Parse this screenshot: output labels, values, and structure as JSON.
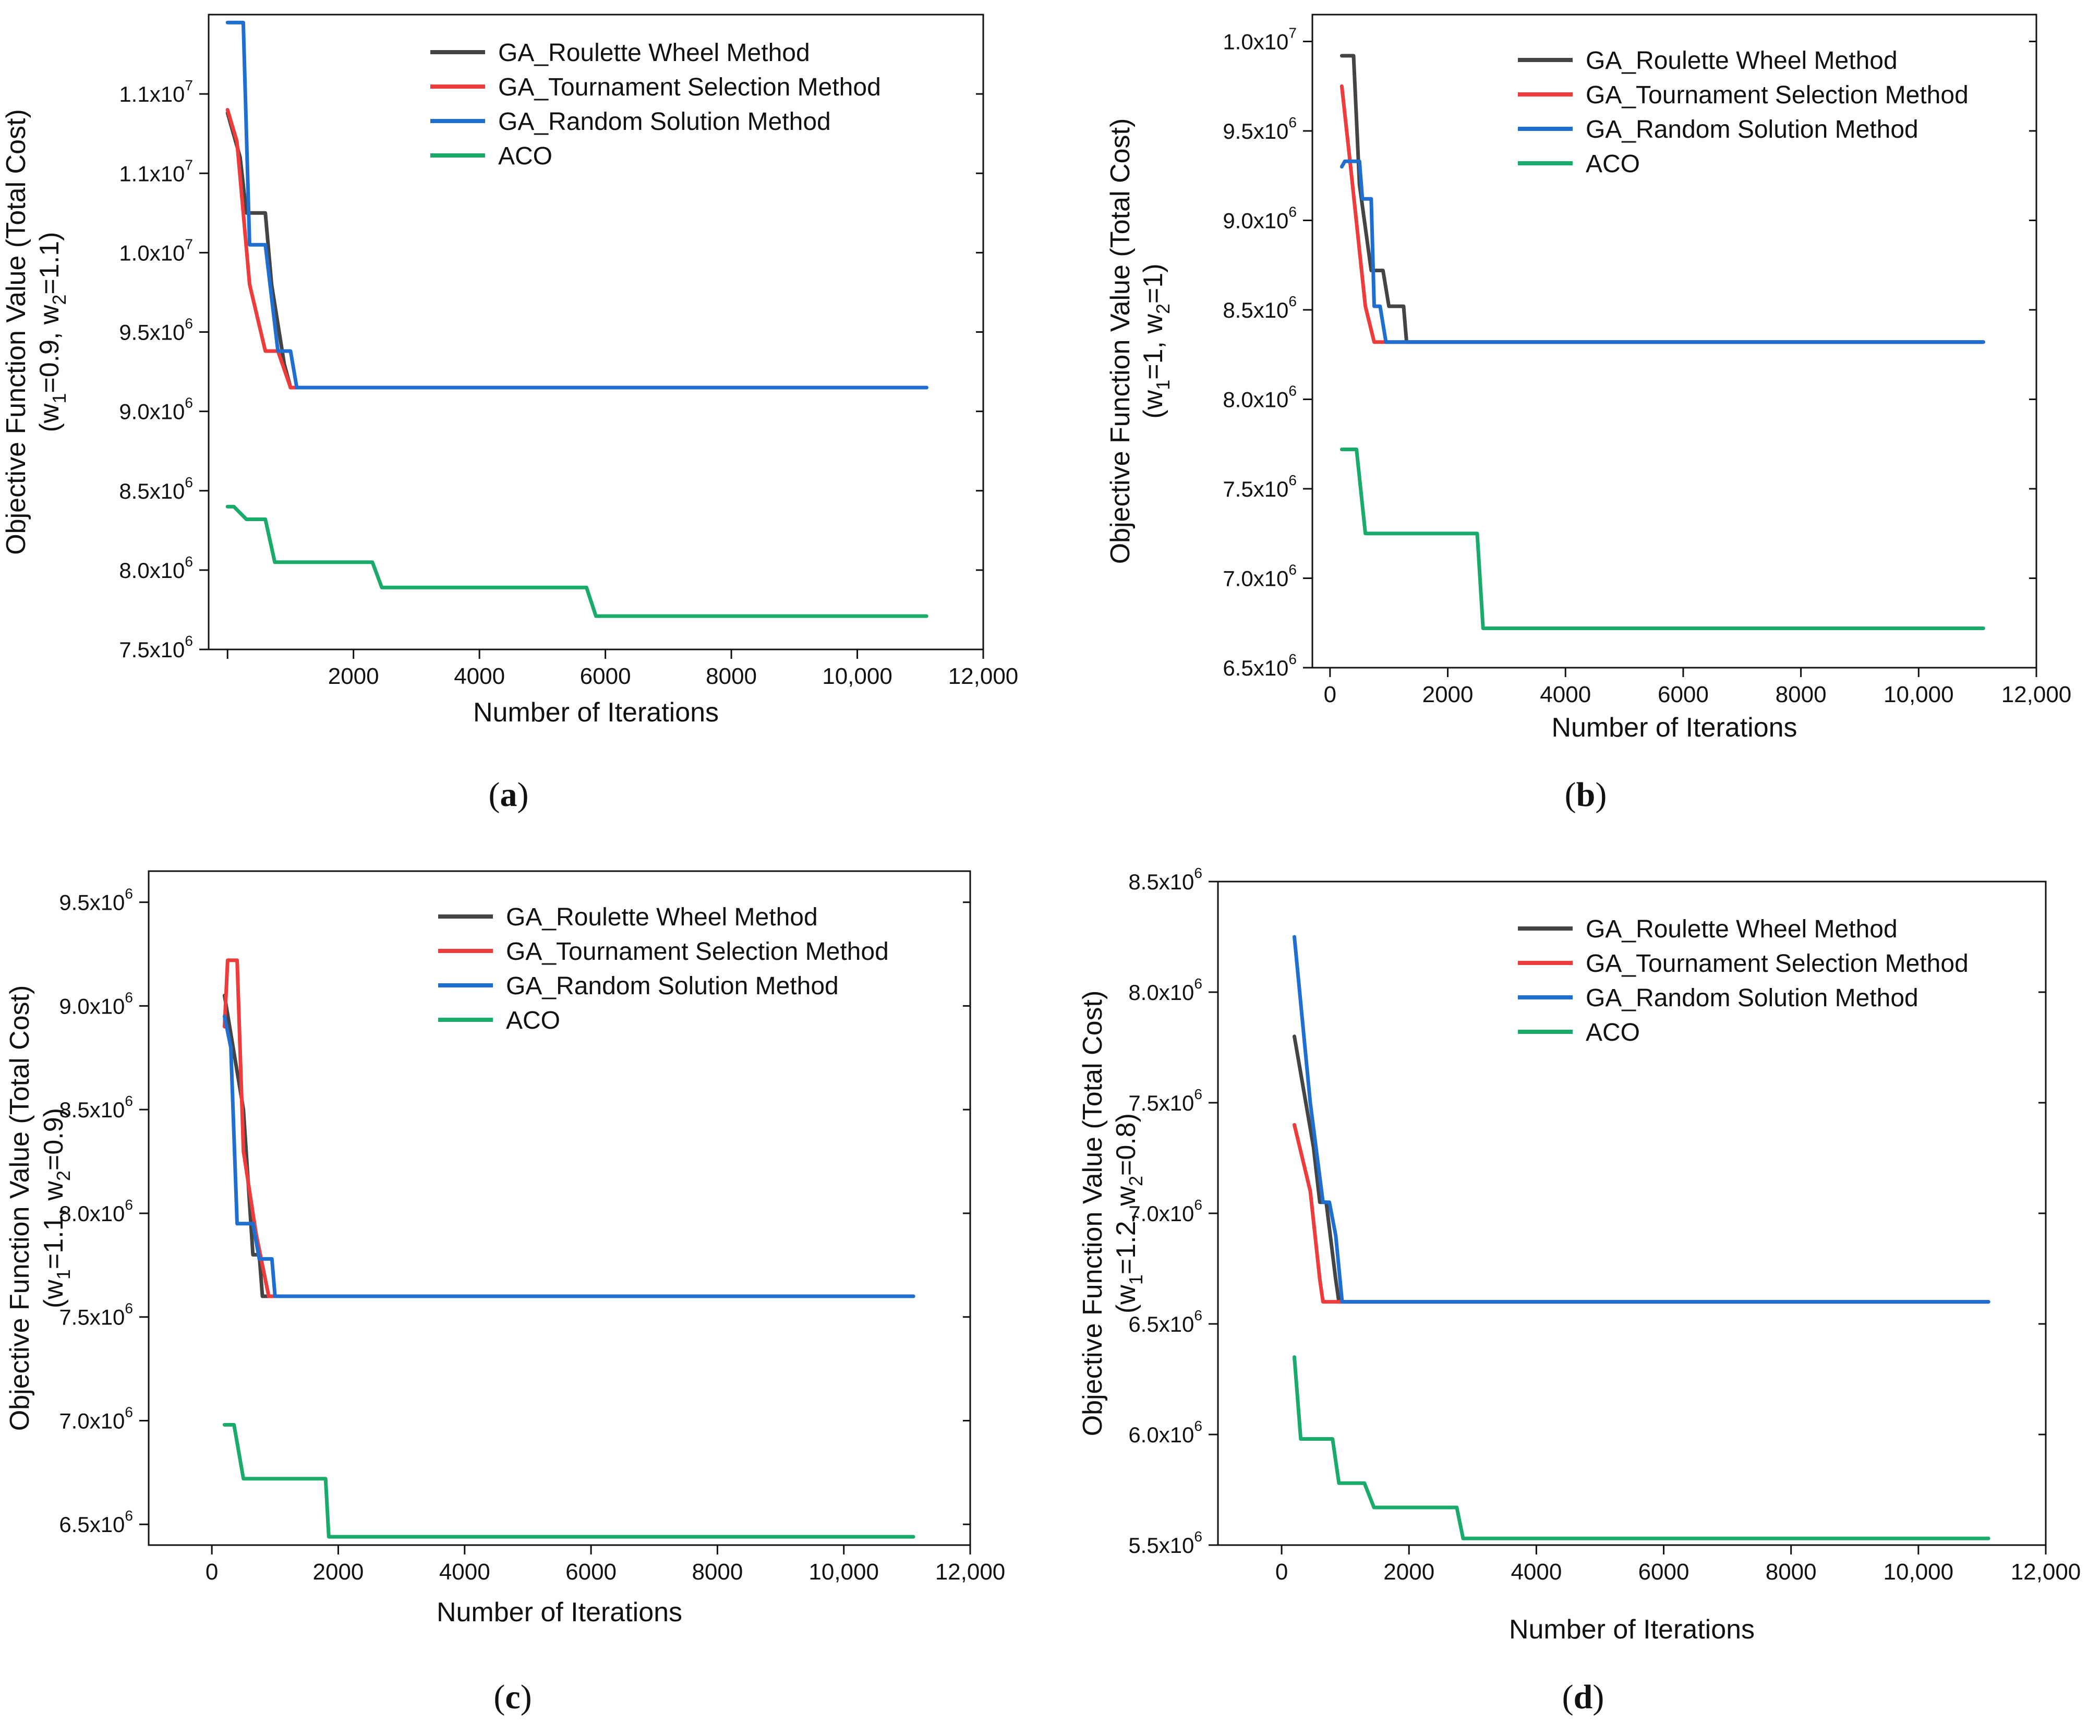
{
  "chart_data": [
    {
      "type": "line",
      "panel_label": "a",
      "xlabel": "Number of Iterations",
      "ylabel": "Objective Function Value (Total Cost)",
      "ylabel_weights": {
        "w1": "0.9",
        "w2": "1.1"
      },
      "xlim": [
        -300,
        12000
      ],
      "ylim": [
        7500000,
        11500000
      ],
      "xticks": [
        0,
        2000,
        4000,
        6000,
        8000,
        10000,
        12000
      ],
      "xtick_labels": [
        "",
        "2000",
        "4000",
        "6000",
        "8000",
        "10,000",
        "12,000"
      ],
      "yticks": [
        {
          "value": 7500000,
          "mantissa": "7.5x10",
          "exp": "6"
        },
        {
          "value": 8000000,
          "mantissa": "8.0x10",
          "exp": "6"
        },
        {
          "value": 8500000,
          "mantissa": "8.5x10",
          "exp": "6"
        },
        {
          "value": 9000000,
          "mantissa": "9.0x10",
          "exp": "6"
        },
        {
          "value": 9500000,
          "mantissa": "9.5x10",
          "exp": "6"
        },
        {
          "value": 10000000,
          "mantissa": "1.0x10",
          "exp": "7"
        },
        {
          "value": 10500000,
          "mantissa": "1.1x10",
          "exp": "7"
        },
        {
          "value": 11000000,
          "mantissa": "1.1x10",
          "exp": "7"
        }
      ],
      "series": [
        {
          "name": "GA_Roulette Wheel Method",
          "color": "#444444",
          "x": [
            0,
            200,
            300,
            600,
            700,
            900,
            1000,
            11100
          ],
          "y": [
            10880000,
            10600000,
            10250000,
            10250000,
            9800000,
            9300000,
            9150000,
            9150000
          ]
        },
        {
          "name": "GA_Tournament Selection Method",
          "color": "#ee3b3b",
          "x": [
            0,
            150,
            350,
            600,
            800,
            1000,
            11100
          ],
          "y": [
            10900000,
            10700000,
            9800000,
            9380000,
            9380000,
            9150000,
            9150000
          ]
        },
        {
          "name": "GA_Random Solution Method",
          "color": "#1f6fd1",
          "x": [
            0,
            250,
            350,
            600,
            800,
            1000,
            1100,
            11100
          ],
          "y": [
            11450000,
            11450000,
            10050000,
            10050000,
            9380000,
            9380000,
            9150000,
            9150000
          ]
        },
        {
          "name": "ACO",
          "color": "#1aaa6a",
          "x": [
            0,
            100,
            300,
            600,
            750,
            2300,
            2450,
            5700,
            5850,
            11100
          ],
          "y": [
            8400000,
            8400000,
            8320000,
            8320000,
            8050000,
            8050000,
            7890000,
            7890000,
            7710000,
            7710000
          ]
        }
      ]
    },
    {
      "type": "line",
      "panel_label": "b",
      "xlabel": "Number of Iterations",
      "ylabel": "Objective Function Value (Total Cost)",
      "ylabel_weights": {
        "w1": "1",
        "w2": "1"
      },
      "xlim": [
        -300,
        12000
      ],
      "ylim": [
        6500000,
        10150000
      ],
      "xticks": [
        0,
        2000,
        4000,
        6000,
        8000,
        10000,
        12000
      ],
      "xtick_labels": [
        "0",
        "2000",
        "4000",
        "6000",
        "8000",
        "10,000",
        "12,000"
      ],
      "yticks": [
        {
          "value": 6500000,
          "mantissa": "6.5x10",
          "exp": "6"
        },
        {
          "value": 7000000,
          "mantissa": "7.0x10",
          "exp": "6"
        },
        {
          "value": 7500000,
          "mantissa": "7.5x10",
          "exp": "6"
        },
        {
          "value": 8000000,
          "mantissa": "8.0x10",
          "exp": "6"
        },
        {
          "value": 8500000,
          "mantissa": "8.5x10",
          "exp": "6"
        },
        {
          "value": 9000000,
          "mantissa": "9.0x10",
          "exp": "6"
        },
        {
          "value": 9500000,
          "mantissa": "9.5x10",
          "exp": "6"
        },
        {
          "value": 10000000,
          "mantissa": "1.0x10",
          "exp": "7"
        }
      ],
      "series": [
        {
          "name": "GA_Roulette Wheel Method",
          "color": "#444444",
          "x": [
            200,
            400,
            500,
            700,
            900,
            1000,
            1250,
            1300,
            11100
          ],
          "y": [
            9920000,
            9920000,
            9200000,
            8720000,
            8720000,
            8520000,
            8520000,
            8320000,
            8320000
          ]
        },
        {
          "name": "GA_Tournament Selection Method",
          "color": "#ee3b3b",
          "x": [
            200,
            350,
            600,
            750,
            11100
          ],
          "y": [
            9750000,
            9300000,
            8520000,
            8320000,
            8320000
          ]
        },
        {
          "name": "GA_Random Solution Method",
          "color": "#1f6fd1",
          "x": [
            200,
            250,
            500,
            550,
            700,
            750,
            850,
            950,
            11100
          ],
          "y": [
            9300000,
            9330000,
            9330000,
            9120000,
            9120000,
            8520000,
            8520000,
            8320000,
            8320000
          ]
        },
        {
          "name": "ACO",
          "color": "#1aaa6a",
          "x": [
            200,
            450,
            600,
            2500,
            2600,
            11100
          ],
          "y": [
            7720000,
            7720000,
            7250000,
            7250000,
            6720000,
            6720000
          ]
        }
      ]
    },
    {
      "type": "line",
      "panel_label": "c",
      "xlabel": "Number of Iterations",
      "ylabel": "Objective Function Value (Total Cost)",
      "ylabel_weights": {
        "w1": "1.1",
        "w2": "0.9"
      },
      "xlim": [
        -1000,
        12000
      ],
      "ylim": [
        6400000,
        9650000
      ],
      "xticks": [
        0,
        2000,
        4000,
        6000,
        8000,
        10000,
        12000
      ],
      "xtick_labels": [
        "0",
        "2000",
        "4000",
        "6000",
        "8000",
        "10,000",
        "12,000"
      ],
      "yticks": [
        {
          "value": 6500000,
          "mantissa": "6.5x10",
          "exp": "6"
        },
        {
          "value": 7000000,
          "mantissa": "7.0x10",
          "exp": "6"
        },
        {
          "value": 7500000,
          "mantissa": "7.5x10",
          "exp": "6"
        },
        {
          "value": 8000000,
          "mantissa": "8.0x10",
          "exp": "6"
        },
        {
          "value": 8500000,
          "mantissa": "8.5x10",
          "exp": "6"
        },
        {
          "value": 9000000,
          "mantissa": "9.0x10",
          "exp": "6"
        },
        {
          "value": 9500000,
          "mantissa": "9.5x10",
          "exp": "6"
        }
      ],
      "series": [
        {
          "name": "GA_Roulette Wheel Method",
          "color": "#444444",
          "x": [
            200,
            500,
            650,
            750,
            800,
            11100
          ],
          "y": [
            9050000,
            8500000,
            7800000,
            7800000,
            7600000,
            7600000
          ]
        },
        {
          "name": "GA_Tournament Selection Method",
          "color": "#ee3b3b",
          "x": [
            200,
            250,
            400,
            500,
            700,
            900,
            11100
          ],
          "y": [
            8900000,
            9220000,
            9220000,
            8300000,
            7900000,
            7600000,
            7600000
          ]
        },
        {
          "name": "GA_Random Solution Method",
          "color": "#1f6fd1",
          "x": [
            200,
            300,
            400,
            650,
            750,
            950,
            1000,
            11100
          ],
          "y": [
            8950000,
            8800000,
            7950000,
            7950000,
            7780000,
            7780000,
            7600000,
            7600000
          ]
        },
        {
          "name": "ACO",
          "color": "#1aaa6a",
          "x": [
            200,
            350,
            500,
            1800,
            1850,
            11100
          ],
          "y": [
            6980000,
            6980000,
            6720000,
            6720000,
            6440000,
            6440000
          ]
        }
      ]
    },
    {
      "type": "line",
      "panel_label": "d",
      "xlabel": "Number of Iterations",
      "ylabel": "Objective Function Value (Total Cost)",
      "ylabel_weights": {
        "w1": "1.2",
        "w2": "0.8"
      },
      "xlim": [
        -1000,
        12000
      ],
      "ylim": [
        5500000,
        8500000
      ],
      "xticks": [
        0,
        2000,
        4000,
        6000,
        8000,
        10000,
        12000
      ],
      "xtick_labels": [
        "0",
        "2000",
        "4000",
        "6000",
        "8000",
        "10,000",
        "12,000"
      ],
      "yticks": [
        {
          "value": 5500000,
          "mantissa": "5.5x10",
          "exp": "6"
        },
        {
          "value": 6000000,
          "mantissa": "6.0x10",
          "exp": "6"
        },
        {
          "value": 6500000,
          "mantissa": "6.5x10",
          "exp": "6"
        },
        {
          "value": 7000000,
          "mantissa": "7.0x10",
          "exp": "6"
        },
        {
          "value": 7500000,
          "mantissa": "7.5x10",
          "exp": "6"
        },
        {
          "value": 8000000,
          "mantissa": "8.0x10",
          "exp": "6"
        },
        {
          "value": 8500000,
          "mantissa": "8.5x10",
          "exp": "6"
        }
      ],
      "series": [
        {
          "name": "GA_Roulette Wheel Method",
          "color": "#444444",
          "x": [
            200,
            500,
            600,
            700,
            850,
            900,
            11100
          ],
          "y": [
            7800000,
            7300000,
            7050000,
            7050000,
            6700000,
            6600000,
            6600000
          ]
        },
        {
          "name": "GA_Tournament Selection Method",
          "color": "#ee3b3b",
          "x": [
            200,
            450,
            600,
            650,
            900,
            11100
          ],
          "y": [
            7400000,
            7100000,
            6700000,
            6600000,
            6600000,
            6600000
          ]
        },
        {
          "name": "GA_Random Solution Method",
          "color": "#1f6fd1",
          "x": [
            200,
            450,
            650,
            750,
            850,
            950,
            11100
          ],
          "y": [
            8250000,
            7500000,
            7050000,
            7050000,
            6900000,
            6600000,
            6600000
          ]
        },
        {
          "name": "ACO",
          "color": "#1aaa6a",
          "x": [
            200,
            300,
            800,
            900,
            1300,
            1450,
            2750,
            2850,
            11100
          ],
          "y": [
            6350000,
            5980000,
            5980000,
            5780000,
            5780000,
            5670000,
            5670000,
            5530000,
            5530000
          ]
        }
      ]
    }
  ]
}
